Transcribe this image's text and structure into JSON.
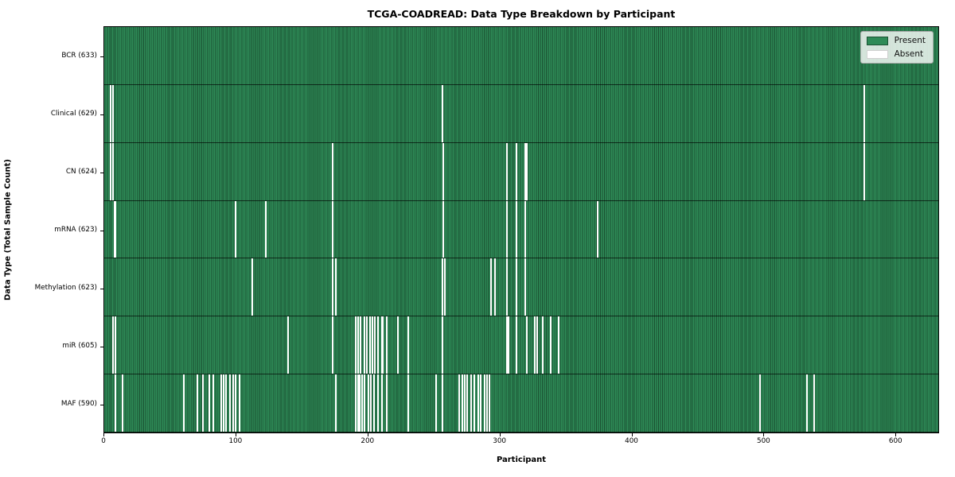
{
  "title": "TCGA-COADREAD: Data Type Breakdown by Participant",
  "axes": {
    "xlabel": "Participant",
    "ylabel": "Data Type (Total Sample Count)"
  },
  "legend": {
    "present_label": "Present",
    "absent_label": "Absent"
  },
  "colors": {
    "present": "#2e8b57",
    "cell_edge": "#1a4f30",
    "absent": "#ffffff",
    "row_divider": "#000000"
  },
  "chart_data": {
    "type": "heatmap",
    "title": "TCGA-COADREAD: Data Type Breakdown by Participant",
    "xlabel": "Participant",
    "ylabel": "Data Type (Total Sample Count)",
    "n_participants": 633,
    "x_ticks": [
      0,
      100,
      200,
      300,
      400,
      500,
      600
    ],
    "legend_entries": [
      "Present",
      "Absent"
    ],
    "legend_position": "upper right",
    "rows": [
      {
        "label": "BCR (633)",
        "data_type": "BCR",
        "present_count": 633,
        "absent_participants": []
      },
      {
        "label": "Clinical (629)",
        "data_type": "Clinical",
        "present_count": 629,
        "absent_participants": [
          4,
          6,
          256,
          576
        ]
      },
      {
        "label": "CN (624)",
        "data_type": "CN",
        "present_count": 624,
        "absent_participants": [
          4,
          6,
          173,
          257,
          305,
          312,
          319,
          320,
          576
        ]
      },
      {
        "label": "mRNA (623)",
        "data_type": "mRNA",
        "present_count": 623,
        "absent_participants": [
          7,
          8,
          99,
          122,
          173,
          257,
          305,
          312,
          319,
          374
        ]
      },
      {
        "label": "Methylation (623)",
        "data_type": "Methylation",
        "present_count": 623,
        "absent_participants": [
          112,
          173,
          175,
          256,
          258,
          293,
          296,
          305,
          312,
          319
        ]
      },
      {
        "label": "miR (605)",
        "data_type": "miR",
        "present_count": 605,
        "absent_participants": [
          6,
          8,
          139,
          173,
          190,
          192,
          194,
          197,
          199,
          201,
          203,
          205,
          207,
          210,
          211,
          214,
          222,
          230,
          256,
          305,
          306,
          312,
          320,
          326,
          328,
          332,
          338,
          344
        ]
      },
      {
        "label": "MAF (590)",
        "data_type": "MAF",
        "present_count": 590,
        "absent_participants": [
          8,
          13,
          60,
          70,
          74,
          79,
          82,
          88,
          90,
          92,
          95,
          97,
          99,
          102,
          175,
          190,
          192,
          193,
          195,
          197,
          200,
          202,
          204,
          207,
          210,
          214,
          230,
          251,
          256,
          269,
          271,
          273,
          275,
          278,
          280,
          283,
          285,
          288,
          290,
          292,
          497,
          533,
          538
        ]
      }
    ]
  }
}
